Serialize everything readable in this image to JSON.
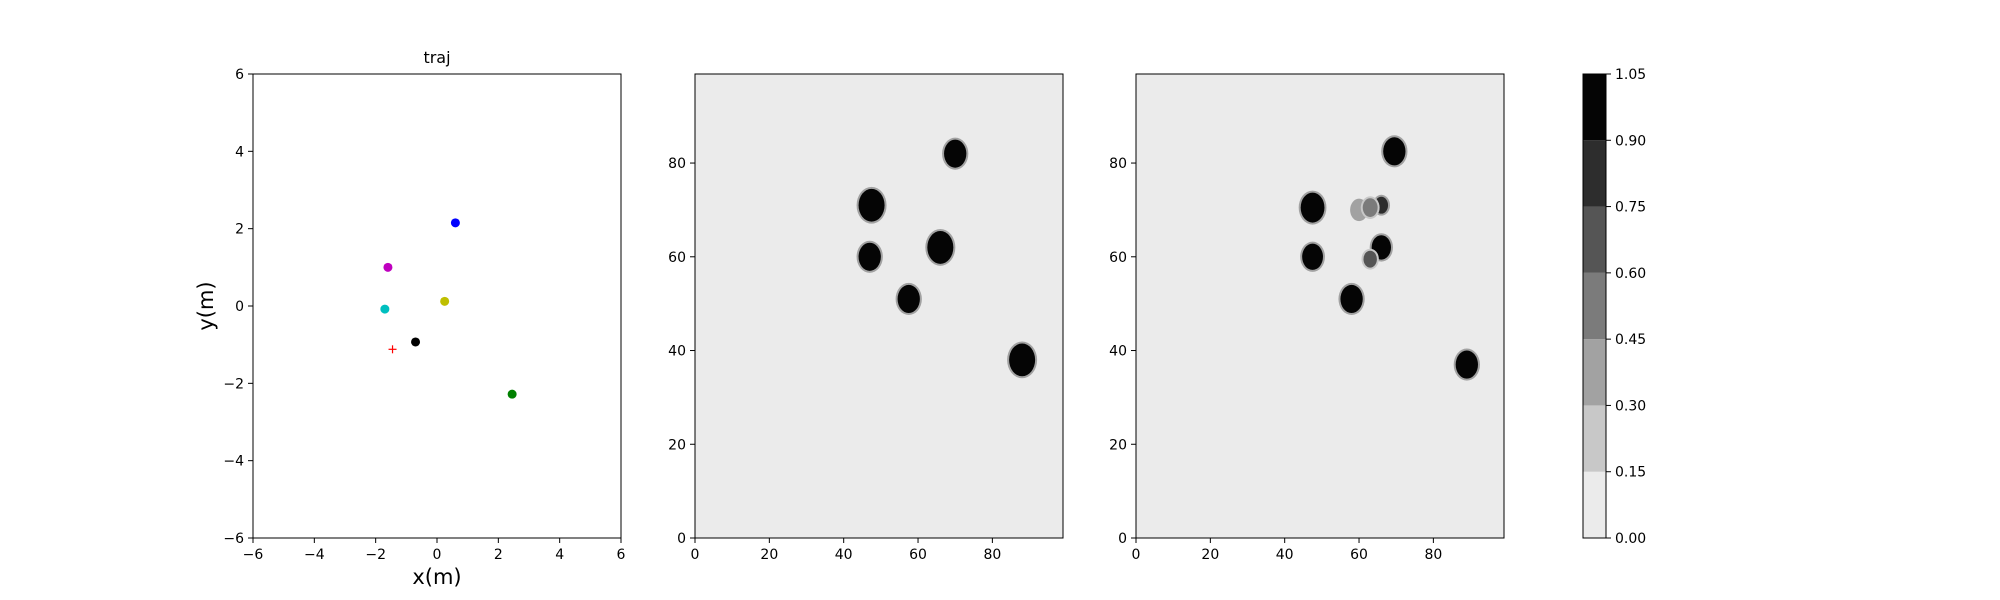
{
  "chart_data": [
    {
      "type": "scatter",
      "title": "traj",
      "xlabel": "x(m)",
      "ylabel": "y(m)",
      "xlim": [
        -6,
        6
      ],
      "ylim": [
        -6,
        6
      ],
      "xticks": [
        -6,
        -4,
        -2,
        0,
        2,
        4,
        6
      ],
      "yticks": [
        -6,
        -4,
        -2,
        0,
        2,
        4,
        6
      ],
      "grid": false,
      "points": [
        {
          "x": 0.6,
          "y": 2.15,
          "color": "#0000ff",
          "marker": "circle"
        },
        {
          "x": -1.6,
          "y": 1.0,
          "color": "#bf00bf",
          "marker": "circle"
        },
        {
          "x": -1.7,
          "y": -0.08,
          "color": "#00bfbf",
          "marker": "circle"
        },
        {
          "x": 0.25,
          "y": 0.12,
          "color": "#bfbf00",
          "marker": "circle"
        },
        {
          "x": -0.7,
          "y": -0.93,
          "color": "#000000",
          "marker": "circle"
        },
        {
          "x": 2.45,
          "y": -2.28,
          "color": "#008000",
          "marker": "circle"
        },
        {
          "x": -1.45,
          "y": -1.12,
          "color": "#ff0000",
          "marker": "plus"
        }
      ]
    },
    {
      "type": "heatmap",
      "xlim": [
        0,
        99
      ],
      "ylim": [
        0,
        99
      ],
      "xticks": [
        0,
        20,
        40,
        60,
        80
      ],
      "yticks": [
        0,
        20,
        40,
        60,
        80
      ],
      "background_value": 0.05,
      "blobs": [
        {
          "x": 70,
          "y": 82,
          "r": 3,
          "value": 1.0
        },
        {
          "x": 47.5,
          "y": 71,
          "r": 3.5,
          "value": 1.0
        },
        {
          "x": 47,
          "y": 60,
          "r": 3,
          "value": 1.0
        },
        {
          "x": 66,
          "y": 62,
          "r": 3.5,
          "value": 1.0
        },
        {
          "x": 57.5,
          "y": 51,
          "r": 3,
          "value": 1.0
        },
        {
          "x": 88,
          "y": 38,
          "r": 3.5,
          "value": 1.0
        }
      ]
    },
    {
      "type": "heatmap",
      "xlim": [
        0,
        99
      ],
      "ylim": [
        0,
        99
      ],
      "xticks": [
        0,
        20,
        40,
        60,
        80
      ],
      "yticks": [
        0,
        20,
        40,
        60,
        80
      ],
      "background_value": 0.05,
      "blobs": [
        {
          "x": 69.5,
          "y": 82.5,
          "r": 3,
          "value": 1.0
        },
        {
          "x": 47.5,
          "y": 70.5,
          "r": 3.2,
          "value": 1.0
        },
        {
          "x": 47.5,
          "y": 60,
          "r": 2.8,
          "value": 1.0
        },
        {
          "x": 58,
          "y": 51,
          "r": 3,
          "value": 1.0
        },
        {
          "x": 89,
          "y": 37,
          "r": 3,
          "value": 1.0
        },
        {
          "x": 66,
          "y": 62,
          "r": 2.6,
          "value": 0.95
        },
        {
          "x": 63,
          "y": 59.5,
          "r": 1.8,
          "value": 0.6
        },
        {
          "x": 66,
          "y": 71,
          "r": 1.8,
          "value": 0.85
        },
        {
          "x": 60,
          "y": 70,
          "r": 2.4,
          "value": 0.35
        },
        {
          "x": 63,
          "y": 70.5,
          "r": 2.0,
          "value": 0.45
        }
      ]
    }
  ],
  "colorbar": {
    "levels": [
      0.0,
      0.15,
      0.3,
      0.45,
      0.6,
      0.75,
      0.9,
      1.05
    ],
    "tick_labels": [
      "0.00",
      "0.15",
      "0.30",
      "0.45",
      "0.60",
      "0.75",
      "0.90",
      "1.05"
    ],
    "band_colors": [
      "#ebebeb",
      "#c8c8c8",
      "#a2a2a2",
      "#7b7b7b",
      "#555555",
      "#2d2d2d",
      "#050505"
    ]
  }
}
